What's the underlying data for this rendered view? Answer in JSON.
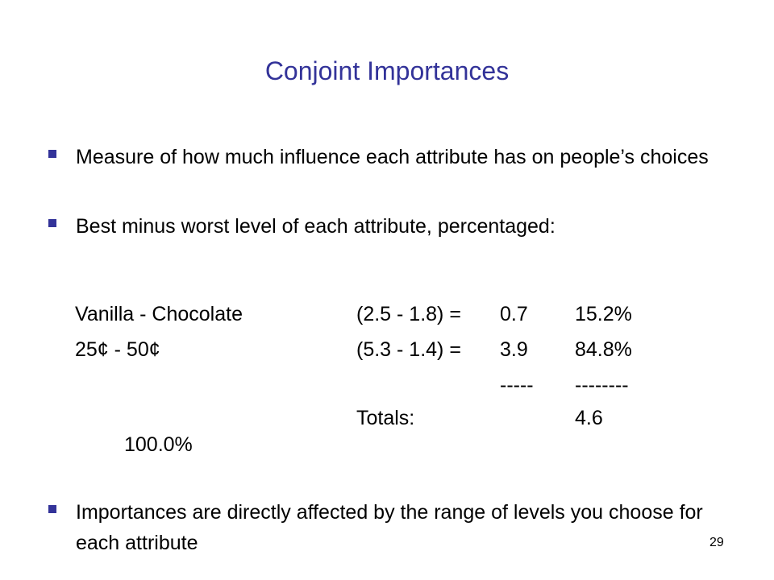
{
  "title": "Conjoint Importances",
  "bullets": [
    "Measure of how much influence each attribute has on people’s choices",
    "Best minus worst level of each attribute, percentaged:",
    "Importances are directly affected by the range of levels you choose for each attribute"
  ],
  "importance_table": {
    "rows": [
      {
        "label": "Vanilla - Chocolate",
        "calc": "(2.5 - 1.8) =",
        "value": "0.7",
        "percent": "15.2%"
      },
      {
        "label": "25¢ - 50¢",
        "calc": "(5.3 - 1.4) =",
        "value": "3.9",
        "percent": "84.8%"
      }
    ],
    "separator_value": "-----",
    "separator_percent": "--------",
    "totals_label": "Totals:",
    "totals_value": "4.6",
    "totals_percent": "100.0%"
  },
  "page_number": "29",
  "colors": {
    "title": "#333399",
    "bullet_marker": "#333399",
    "text": "#000000"
  }
}
